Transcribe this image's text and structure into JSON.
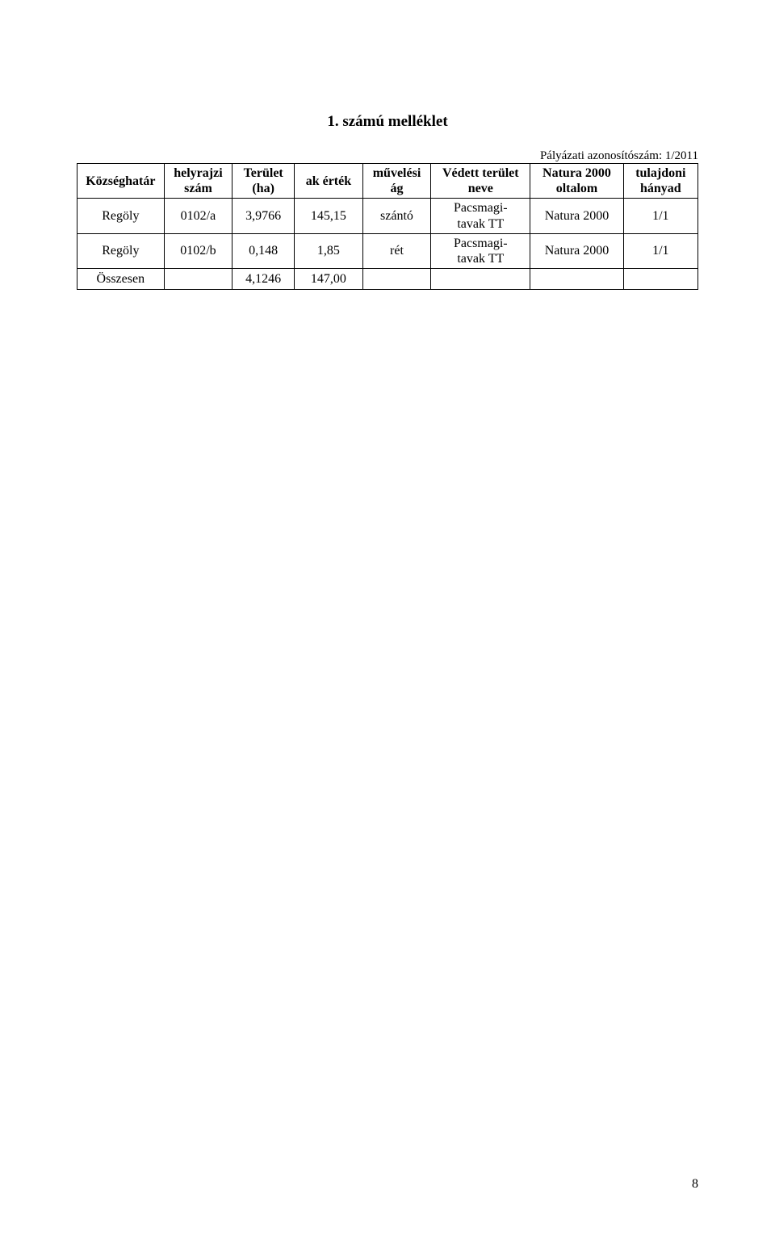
{
  "header": {
    "id_line": "Pályázati azonosítószám: 1/2011"
  },
  "title": "1. számú melléklet",
  "table": {
    "columns": [
      {
        "line1": "Községhatár",
        "line2": ""
      },
      {
        "line1": "helyrajzi",
        "line2": "szám"
      },
      {
        "line1": "Terület",
        "line2": "(ha)"
      },
      {
        "line1": "ak érték",
        "line2": ""
      },
      {
        "line1": "művelési",
        "line2": "ág"
      },
      {
        "line1": "Védett terület",
        "line2": "neve"
      },
      {
        "line1": "Natura 2000",
        "line2": "oltalom"
      },
      {
        "line1": "tulajdoni",
        "line2": "hányad"
      }
    ],
    "rows": [
      {
        "kozseghatar": "Regöly",
        "helyrajzi_szam": "0102/a",
        "terulet_ha": "3,9766",
        "ak_ertek": "145,15",
        "muvelesi_ag": "szántó",
        "vedett_line1": "Pacsmagi-",
        "vedett_line2": "tavak TT",
        "natura": "Natura 2000",
        "hanyad": "1/1"
      },
      {
        "kozseghatar": "Regöly",
        "helyrajzi_szam": "0102/b",
        "terulet_ha": "0,148",
        "ak_ertek": "1,85",
        "muvelesi_ag": "rét",
        "vedett_line1": "Pacsmagi-",
        "vedett_line2": "tavak TT",
        "natura": "Natura 2000",
        "hanyad": "1/1"
      }
    ],
    "summary": {
      "label": "Összesen",
      "terulet_ha": "4,1246",
      "ak_ertek": "147,00"
    }
  },
  "page_number": "8"
}
